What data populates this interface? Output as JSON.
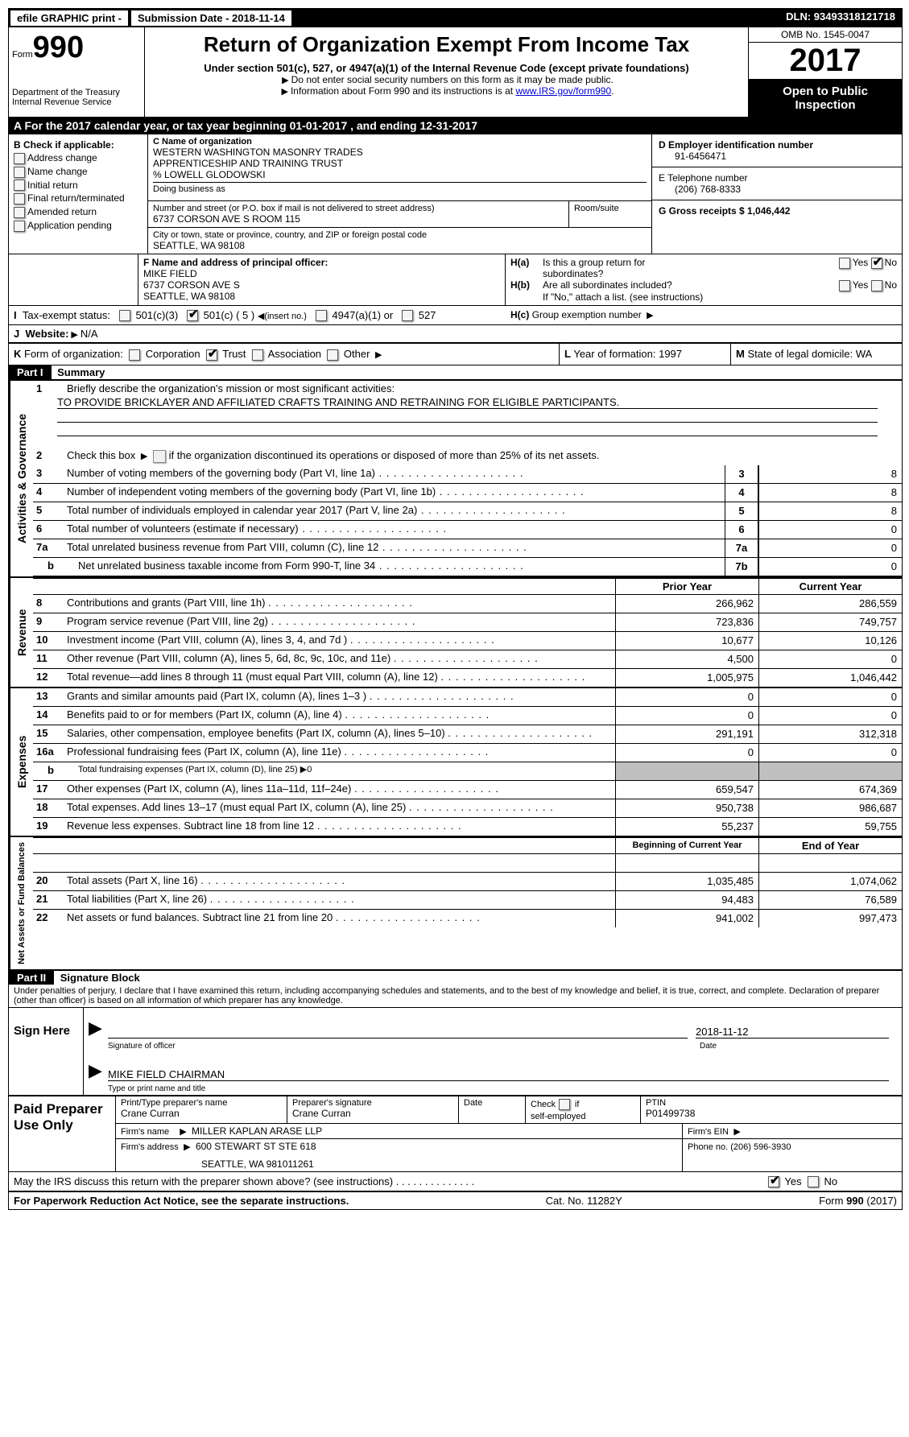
{
  "top_bar": {
    "efile": "efile GRAPHIC print -",
    "submission_label": "Submission Date - 2018-11-14",
    "dln": "DLN: 93493318121718"
  },
  "header": {
    "form_label": "Form",
    "form_number": "990",
    "dept": "Department of the Treasury",
    "irs": "Internal Revenue Service",
    "title": "Return of Organization Exempt From Income Tax",
    "subtitle": "Under section 501(c), 527, or 4947(a)(1) of the Internal Revenue Code (except private foundations)",
    "note1": "Do not enter social security numbers on this form as it may be made public.",
    "note2_prefix": "Information about Form 990 and its instructions is at ",
    "note2_link": "www.IRS.gov/form990",
    "omb": "OMB No. 1545-0047",
    "year": "2017",
    "open": "Open to Public Inspection"
  },
  "section_a": {
    "line": "A   For the 2017 calendar year, or tax year beginning 01-01-2017    , and ending 12-31-2017"
  },
  "col_b": {
    "title": "B Check if applicable:",
    "items": [
      "Address change",
      "Name change",
      "Initial return",
      "Final return/terminated",
      "Amended return",
      "Application pending"
    ]
  },
  "col_c": {
    "name_label": "C Name of organization",
    "name1": "WESTERN WASHINGTON MASONRY TRADES",
    "name2": "APPRENTICESHIP AND TRAINING TRUST",
    "name3": "% LOWELL GLODOWSKI",
    "dba_label": "Doing business as",
    "street_label": "Number and street (or P.O. box if mail is not delivered to street address)",
    "room_label": "Room/suite",
    "street": "6737 CORSON AVE S ROOM 115",
    "city_label": "City or town, state or province, country, and ZIP or foreign postal code",
    "city": "SEATTLE, WA  98108"
  },
  "col_d": {
    "ein_label": "D Employer identification number",
    "ein": "91-6456471",
    "phone_label": "E Telephone number",
    "phone": "(206) 768-8333",
    "gross_label": "G Gross receipts $ 1,046,442"
  },
  "row_f": {
    "label": "F  Name and address of principal officer:",
    "name": "MIKE FIELD",
    "addr1": "6737 CORSON AVE S",
    "addr2": "SEATTLE, WA  98108"
  },
  "row_h": {
    "ha": "Is this a group return for",
    "ha2": "subordinates?",
    "hb": "Are all subordinates included?",
    "note": "If \"No,\" attach a list. (see instructions)",
    "hc": "Group exemption number"
  },
  "status": {
    "i": "Tax-exempt status:",
    "opt1": "501(c)(3)",
    "opt2": "501(c) ( 5 )",
    "opt2b": "(insert no.)",
    "opt3": "4947(a)(1) or",
    "opt4": "527",
    "j_label": "Website:",
    "j_val": "N/A",
    "k_label": "Form of organization:",
    "k_opts": [
      "Corporation",
      "Trust",
      "Association",
      "Other"
    ],
    "l_label": "Year of formation: 1997",
    "m_label": "State of legal domicile: WA"
  },
  "part1": {
    "title": "Summary",
    "line1": "Briefly describe the organization's mission or most significant activities:",
    "mission": "TO PROVIDE BRICKLAYER AND AFFILIATED CRAFTS TRAINING AND RETRAINING FOR ELIGIBLE PARTICIPANTS.",
    "line2": "Check this box",
    "line2b": "if the organization discontinued its operations or disposed of more than 25% of its net assets.",
    "rows_gov": [
      {
        "n": "3",
        "d": "Number of voting members of the governing body (Part VI, line 1a)",
        "box": "3",
        "v": "8"
      },
      {
        "n": "4",
        "d": "Number of independent voting members of the governing body (Part VI, line 1b)",
        "box": "4",
        "v": "8"
      },
      {
        "n": "5",
        "d": "Total number of individuals employed in calendar year 2017 (Part V, line 2a)",
        "box": "5",
        "v": "8"
      },
      {
        "n": "6",
        "d": "Total number of volunteers (estimate if necessary)",
        "box": "6",
        "v": "0"
      },
      {
        "n": "7a",
        "d": "Total unrelated business revenue from Part VIII, column (C), line 12",
        "box": "7a",
        "v": "0"
      },
      {
        "n": "b",
        "d": "Net unrelated business taxable income from Form 990-T, line 34",
        "box": "7b",
        "v": "0",
        "indent": true
      }
    ],
    "header_py": "Prior Year",
    "header_cy": "Current Year",
    "rows_rev": [
      {
        "n": "8",
        "d": "Contributions and grants (Part VIII, line 1h)",
        "py": "266,962",
        "cy": "286,559"
      },
      {
        "n": "9",
        "d": "Program service revenue (Part VIII, line 2g)",
        "py": "723,836",
        "cy": "749,757"
      },
      {
        "n": "10",
        "d": "Investment income (Part VIII, column (A), lines 3, 4, and 7d )",
        "py": "10,677",
        "cy": "10,126"
      },
      {
        "n": "11",
        "d": "Other revenue (Part VIII, column (A), lines 5, 6d, 8c, 9c, 10c, and 11e)",
        "py": "4,500",
        "cy": "0"
      },
      {
        "n": "12",
        "d": "Total revenue—add lines 8 through 11 (must equal Part VIII, column (A), line 12)",
        "py": "1,005,975",
        "cy": "1,046,442"
      }
    ],
    "rows_exp": [
      {
        "n": "13",
        "d": "Grants and similar amounts paid (Part IX, column (A), lines 1–3 )",
        "py": "0",
        "cy": "0"
      },
      {
        "n": "14",
        "d": "Benefits paid to or for members (Part IX, column (A), line 4)",
        "py": "0",
        "cy": "0"
      },
      {
        "n": "15",
        "d": "Salaries, other compensation, employee benefits (Part IX, column (A), lines 5–10)",
        "py": "291,191",
        "cy": "312,318"
      },
      {
        "n": "16a",
        "d": "Professional fundraising fees (Part IX, column (A), line 11e)",
        "py": "0",
        "cy": "0"
      },
      {
        "n": "b",
        "d": "Total fundraising expenses (Part IX, column (D), line 25) ▶0",
        "py": "",
        "cy": "",
        "shaded": true,
        "indent": true,
        "small": true
      },
      {
        "n": "17",
        "d": "Other expenses (Part IX, column (A), lines 11a–11d, 11f–24e)",
        "py": "659,547",
        "cy": "674,369"
      },
      {
        "n": "18",
        "d": "Total expenses. Add lines 13–17 (must equal Part IX, column (A), line 25)",
        "py": "950,738",
        "cy": "986,687"
      },
      {
        "n": "19",
        "d": "Revenue less expenses. Subtract line 18 from line 12",
        "py": "55,237",
        "cy": "59,755"
      }
    ],
    "header_boy": "Beginning of Current Year",
    "header_eoy": "End of Year",
    "rows_net": [
      {
        "n": "20",
        "d": "Total assets (Part X, line 16)",
        "py": "1,035,485",
        "cy": "1,074,062"
      },
      {
        "n": "21",
        "d": "Total liabilities (Part X, line 26)",
        "py": "94,483",
        "cy": "76,589"
      },
      {
        "n": "22",
        "d": "Net assets or fund balances. Subtract line 21 from line 20",
        "py": "941,002",
        "cy": "997,473"
      }
    ]
  },
  "side_tabs": {
    "gov": "Activities & Governance",
    "rev": "Revenue",
    "exp": "Expenses",
    "net": "Net Assets or Fund Balances"
  },
  "part2": {
    "title": "Signature Block",
    "perjury": "Under penalties of perjury, I declare that I have examined this return, including accompanying schedules and statements, and to the best of my knowledge and belief, it is true, correct, and complete. Declaration of preparer (other than officer) is based on all information of which preparer has any knowledge.",
    "sign_here": "Sign Here",
    "sig_label": "Signature of officer",
    "date": "2018-11-12",
    "date_label": "Date",
    "name": "MIKE FIELD CHAIRMAN",
    "name_label": "Type or print name and title"
  },
  "preparer": {
    "label": "Paid Preparer Use Only",
    "print_label": "Print/Type preparer's name",
    "print_name": "Crane Curran",
    "sig_label": "Preparer's signature",
    "sig_name": "Crane Curran",
    "date_label": "Date",
    "check_label": "Check",
    "self_emp": "self-employed",
    "if": "if",
    "ptin_label": "PTIN",
    "ptin": "P01499738",
    "firm_name_label": "Firm's name",
    "firm_name": "MILLER KAPLAN ARASE LLP",
    "firm_ein_label": "Firm's EIN",
    "firm_addr_label": "Firm's address",
    "firm_addr1": "600 STEWART ST STE 618",
    "firm_addr2": "SEATTLE, WA  981011261",
    "phone_label": "Phone no. (206) 596-3930"
  },
  "discuss": {
    "text": "May the IRS discuss this return with the preparer shown above? (see instructions)",
    "yes": "Yes",
    "no": "No"
  },
  "footer": {
    "left": "For Paperwork Reduction Act Notice, see the separate instructions.",
    "center": "Cat. No. 11282Y",
    "right": "Form 990 (2017)"
  }
}
